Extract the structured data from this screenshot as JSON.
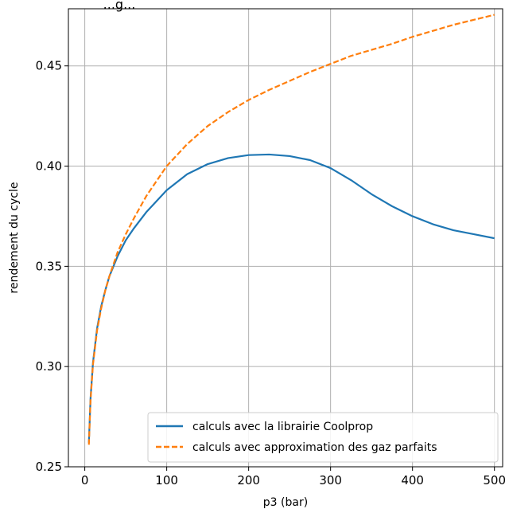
{
  "chart_data": {
    "type": "line",
    "title": "...g...",
    "xlabel": "p3 (bar)",
    "ylabel": "rendement du cycle",
    "xlim": [
      -20,
      510
    ],
    "ylim": [
      0.25,
      0.4785
    ],
    "xticks": [
      0,
      100,
      200,
      300,
      400,
      500
    ],
    "xtick_labels": [
      "0",
      "100",
      "200",
      "300",
      "400",
      "500"
    ],
    "yticks": [
      0.25,
      0.3,
      0.35,
      0.4,
      0.45
    ],
    "ytick_labels": [
      "0.25",
      "0.30",
      "0.35",
      "0.40",
      "0.45"
    ],
    "grid": true,
    "legend_position": "lower-right",
    "series": [
      {
        "name": "calculs avec la librairie Coolprop",
        "color": "#1f77b4",
        "dash": "solid",
        "x": [
          5,
          7,
          10,
          15,
          20,
          25,
          30,
          40,
          50,
          60,
          75,
          100,
          125,
          150,
          175,
          200,
          225,
          250,
          275,
          300,
          325,
          350,
          375,
          400,
          425,
          450,
          475,
          500
        ],
        "y": [
          0.262,
          0.284,
          0.302,
          0.319,
          0.33,
          0.338,
          0.345,
          0.355,
          0.363,
          0.369,
          0.377,
          0.388,
          0.396,
          0.401,
          0.404,
          0.4055,
          0.4058,
          0.405,
          0.403,
          0.399,
          0.393,
          0.386,
          0.38,
          0.375,
          0.371,
          0.368,
          0.366,
          0.364
        ]
      },
      {
        "name": "calculs avec approximation des gaz parfaits",
        "color": "#ff7f0e",
        "dash": "dashed",
        "x": [
          5,
          7,
          10,
          15,
          20,
          25,
          30,
          40,
          50,
          60,
          75,
          100,
          125,
          150,
          175,
          200,
          225,
          250,
          275,
          300,
          325,
          350,
          375,
          400,
          425,
          450,
          475,
          500
        ],
        "y": [
          0.261,
          0.283,
          0.301,
          0.318,
          0.329,
          0.338,
          0.345,
          0.357,
          0.366,
          0.374,
          0.385,
          0.4,
          0.411,
          0.42,
          0.427,
          0.433,
          0.438,
          0.4425,
          0.447,
          0.451,
          0.455,
          0.458,
          0.461,
          0.4645,
          0.4675,
          0.4705,
          0.473,
          0.4755
        ]
      }
    ]
  }
}
